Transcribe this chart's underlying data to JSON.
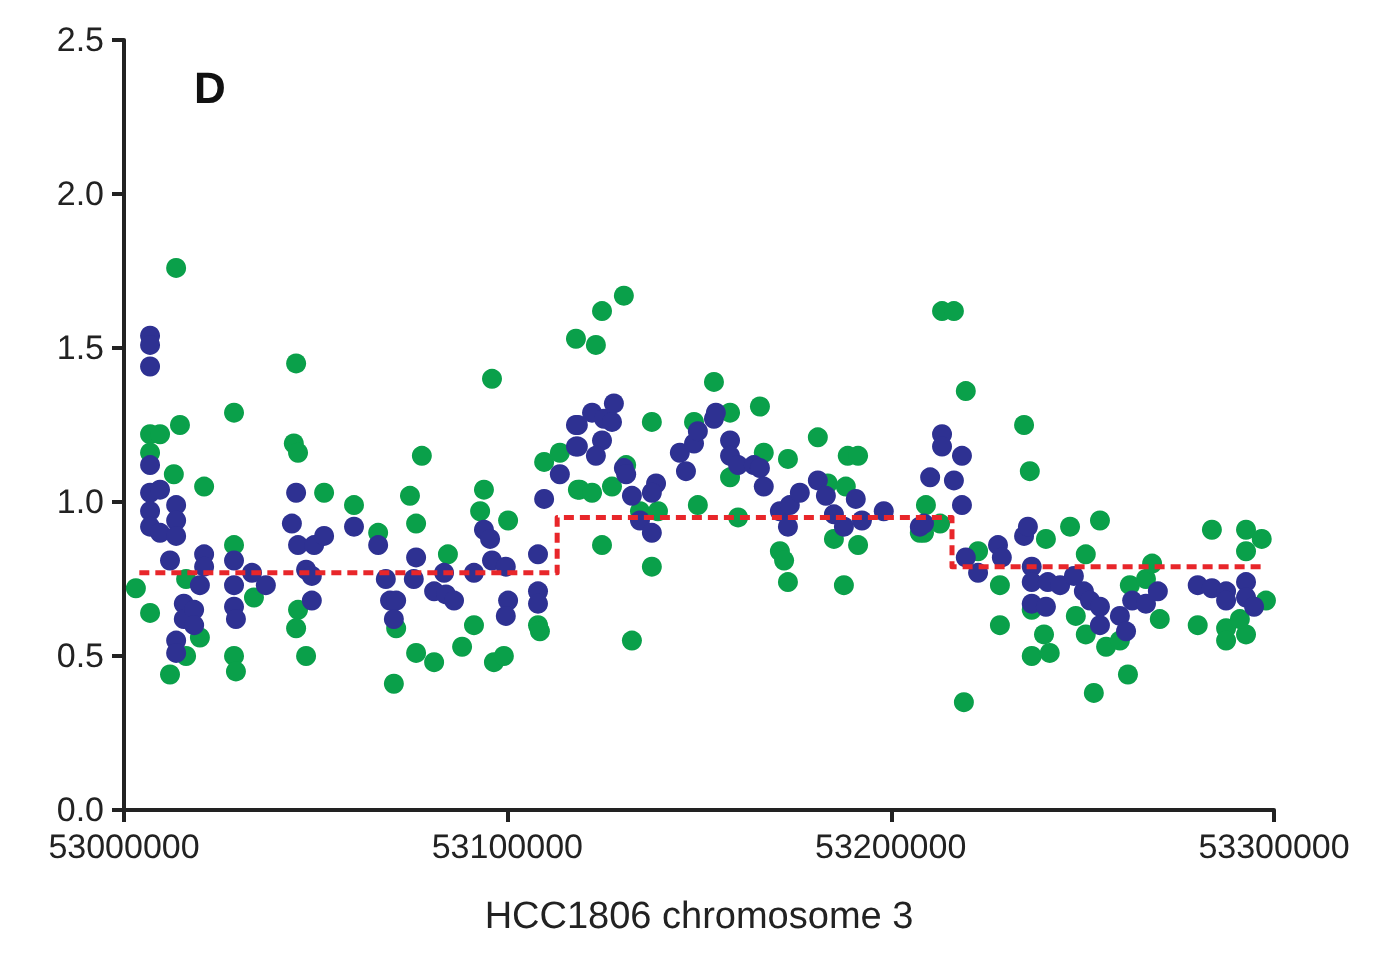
{
  "chart_data": {
    "type": "scatter",
    "title": "D",
    "xlabel": "HCC1806 chromosome 3",
    "xlim": [
      53000000,
      53300000
    ],
    "xticks": [
      53000000,
      53100000,
      53200000,
      53300000
    ],
    "ylim": [
      0,
      2.5
    ],
    "yticks": [
      {
        "value": 0,
        "label": "0.0"
      },
      {
        "value": 0.5,
        "label": "0.5"
      },
      {
        "value": 1,
        "label": "1.0"
      },
      {
        "value": 1.5,
        "label": "1.5"
      },
      {
        "value": 2,
        "label": "2.0"
      },
      {
        "value": 2.5,
        "label": "2.5"
      }
    ],
    "marker": "circle",
    "series": [
      {
        "color": "#0aa04a",
        "x": [
          53013600,
          53006800,
          53009400,
          53006800,
          53014600,
          53013000,
          53020900,
          53003100,
          53006800,
          53012000,
          53016200,
          53019800,
          53028700,
          53028700,
          53028700,
          53029200,
          53033900,
          53044900,
          53044300,
          53045400,
          53052200,
          53060000,
          53045400,
          53044900,
          53047500,
          53066300,
          53070400,
          53071000,
          53074600,
          53076200,
          53077700,
          53076200,
          53080900,
          53084500,
          53088200,
          53091300,
          53093900,
          53092900,
          53096000,
          53100200,
          53096500,
          53099100,
          53108000,
          53108500,
          53109600,
          53113700,
          53117900,
          53118400,
          53016200,
          53130400,
          53124700,
          53123100,
          53118900,
          53122100,
          53127300,
          53131000,
          53137700,
          53134600,
          53139300,
          53124700,
          53137700,
          53132500,
          53148700,
          53153900,
          53158100,
          53149700,
          53165900,
          53166900,
          53160200,
          53158100,
          53173200,
          53181000,
          53171100,
          53172200,
          53173200,
          53183600,
          53188300,
          53188800,
          53191500,
          53185200,
          53191500,
          53187800,
          53207600,
          53213400,
          53216500,
          53219600,
          53209200,
          53208700,
          53212900,
          53219100,
          53222800,
          53228500,
          53228500,
          53234800,
          53236300,
          53240500,
          53246800,
          53254600,
          53250900,
          53236800,
          53240000,
          53236800,
          53241500,
          53248300,
          53250900,
          53256200,
          53253000,
          53259800,
          53261900,
          53262400,
          53266600,
          53268200,
          53270200,
          53280100,
          53283800,
          53292700,
          53296800,
          53292700,
          53287500,
          53287500,
          53292700,
          53291100,
          53297900
        ],
        "values": [
          1.76,
          1.22,
          1.22,
          1.16,
          1.25,
          1.09,
          1.05,
          0.72,
          0.64,
          0.44,
          0.5,
          0.56,
          1.29,
          0.86,
          0.5,
          0.45,
          0.69,
          1.45,
          1.19,
          1.16,
          1.03,
          0.99,
          0.65,
          0.59,
          0.5,
          0.9,
          0.41,
          0.59,
          1.02,
          0.93,
          1.15,
          0.51,
          0.48,
          0.83,
          0.53,
          0.6,
          1.04,
          0.97,
          1.4,
          0.94,
          0.48,
          0.5,
          0.6,
          0.58,
          1.13,
          1.16,
          1.53,
          1.04,
          0.75,
          1.67,
          1.62,
          1.51,
          1.04,
          1.03,
          1.05,
          1.12,
          1.26,
          0.97,
          0.97,
          0.86,
          0.79,
          0.55,
          1.26,
          1.39,
          1.29,
          0.99,
          1.31,
          1.16,
          0.95,
          1.08,
          1.14,
          1.21,
          0.84,
          0.81,
          0.74,
          1.06,
          1.05,
          1.15,
          1.15,
          0.88,
          0.86,
          0.73,
          0.9,
          1.62,
          1.62,
          1.36,
          0.99,
          0.9,
          0.93,
          0.35,
          0.84,
          0.73,
          0.6,
          1.25,
          1.1,
          0.88,
          0.92,
          0.94,
          0.83,
          0.65,
          0.57,
          0.5,
          0.51,
          0.63,
          0.57,
          0.53,
          0.38,
          0.55,
          0.44,
          0.73,
          0.75,
          0.8,
          0.62,
          0.6,
          0.91,
          0.91,
          0.88,
          0.84,
          0.59,
          0.55,
          0.57,
          0.62,
          0.68
        ]
      },
      {
        "color": "#2e3192",
        "x": [
          53006800,
          53006800,
          53006800,
          53006800,
          53006800,
          53009400,
          53006800,
          53006800,
          53009400,
          53013600,
          53013600,
          53013600,
          53012000,
          53015600,
          53015600,
          53013600,
          53013600,
          53018300,
          53018300,
          53020900,
          53020900,
          53019800,
          53028700,
          53028700,
          53028700,
          53029200,
          53033400,
          53037000,
          53044900,
          53043800,
          53045400,
          53047500,
          53049000,
          53049600,
          53052200,
          53049000,
          53060000,
          53066300,
          53068300,
          53069400,
          53071000,
          53070400,
          53076200,
          53075600,
          53080900,
          53084000,
          53086100,
          53083500,
          53091300,
          53093900,
          53095500,
          53096000,
          53099600,
          53100200,
          53099600,
          53108000,
          53108000,
          53108000,
          53109600,
          53113700,
          53117900,
          53117900,
          53118400,
          53118400,
          53122100,
          53125200,
          53127800,
          53127300,
          53124700,
          53123100,
          53130400,
          53131000,
          53132500,
          53138800,
          53137700,
          53134600,
          53137700,
          53145000,
          53146600,
          53148700,
          53149700,
          53153900,
          53154400,
          53158100,
          53158100,
          53160200,
          53164300,
          53165900,
          53166900,
          53171100,
          53173700,
          53173200,
          53176300,
          53181000,
          53183100,
          53185200,
          53187800,
          53190900,
          53192500,
          53198200,
          53207600,
          53213400,
          53213400,
          53218600,
          53210300,
          53216500,
          53218600,
          53208700,
          53219600,
          53222800,
          53228000,
          53229000,
          53234800,
          53235800,
          53236800,
          53236800,
          53236800,
          53240500,
          53241000,
          53244200,
          53247800,
          53250400,
          53252000,
          53254600,
          53254600,
          53259800,
          53261400,
          53263000,
          53266600,
          53269700,
          53280100,
          53283800,
          53287500,
          53287500,
          53292700,
          53292700,
          53294800
        ],
        "values": [
          1.54,
          1.51,
          1.44,
          1.12,
          1.03,
          1.04,
          0.97,
          0.92,
          0.9,
          0.99,
          0.94,
          0.89,
          0.81,
          0.67,
          0.62,
          0.55,
          0.51,
          0.65,
          0.6,
          0.83,
          0.79,
          0.73,
          0.81,
          0.73,
          0.66,
          0.62,
          0.77,
          0.73,
          1.03,
          0.93,
          0.86,
          0.78,
          0.76,
          0.86,
          0.89,
          0.68,
          0.92,
          0.86,
          0.75,
          0.68,
          0.68,
          0.62,
          0.82,
          0.75,
          0.71,
          0.7,
          0.68,
          0.77,
          0.77,
          0.91,
          0.88,
          0.81,
          0.79,
          0.68,
          0.63,
          0.83,
          0.71,
          0.67,
          1.01,
          1.09,
          1.25,
          1.18,
          1.18,
          1.25,
          1.29,
          1.27,
          1.32,
          1.26,
          1.2,
          1.15,
          1.11,
          1.09,
          1.02,
          1.06,
          1.03,
          0.94,
          0.9,
          1.16,
          1.1,
          1.19,
          1.23,
          1.27,
          1.29,
          1.2,
          1.15,
          1.12,
          1.12,
          1.11,
          1.05,
          0.97,
          0.99,
          0.92,
          1.03,
          1.07,
          1.02,
          0.96,
          0.92,
          1.01,
          0.94,
          0.97,
          0.92,
          1.22,
          1.18,
          1.15,
          1.08,
          1.07,
          0.99,
          0.93,
          0.82,
          0.77,
          0.86,
          0.82,
          0.89,
          0.92,
          0.79,
          0.74,
          0.67,
          0.66,
          0.74,
          0.73,
          0.76,
          0.71,
          0.68,
          0.66,
          0.6,
          0.63,
          0.58,
          0.68,
          0.67,
          0.71,
          0.73,
          0.72,
          0.71,
          0.68,
          0.74,
          0.69,
          0.66
        ]
      },
      {
        "type": "step",
        "color": "#e8262a",
        "line_style": "dashed",
        "marker": "none",
        "x": [
          53004000,
          53113000,
          53216000,
          53297000
        ],
        "values": [
          0.77,
          0.95,
          0.79,
          0.79
        ]
      }
    ]
  }
}
